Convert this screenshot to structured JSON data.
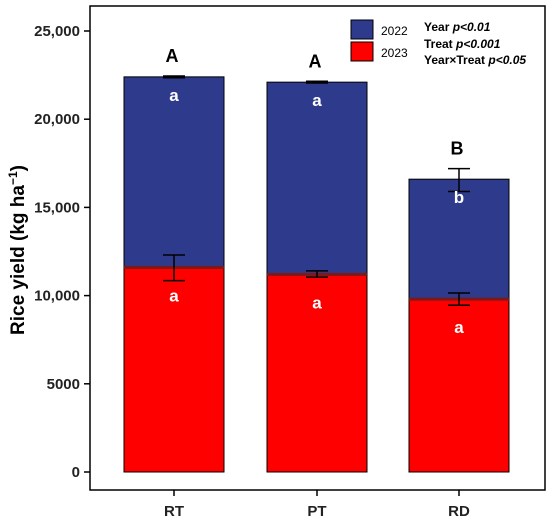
{
  "chart_data": {
    "type": "bar",
    "stacked": true,
    "categories": [
      "RT",
      "PT",
      "RD"
    ],
    "ylabel_main": "Rice yield (kg ha",
    "ylabel_sup": "−1",
    "ylabel_close": ")",
    "ylim": [
      0,
      25000
    ],
    "yticks": [
      0,
      5000,
      10000,
      15000,
      20000,
      25000
    ],
    "ytick_labels": [
      "0",
      "5000",
      "10,000",
      "15,000",
      "20,000",
      "25,000"
    ],
    "grid": false,
    "legend_position": "top-right",
    "series": [
      {
        "name": "2023",
        "color": "#ff0000",
        "values": [
          11600,
          11200,
          9800
        ],
        "error_low": [
          10850,
          11050,
          9450
        ],
        "error_high": [
          12300,
          11400,
          10150
        ],
        "letters": [
          "a",
          "a",
          "a"
        ]
      },
      {
        "name": "2022",
        "color": "#2e3a8c",
        "values": [
          10800,
          10900,
          6800
        ],
        "error_low": [
          22350,
          22050,
          15900
        ],
        "error_high": [
          22450,
          22150,
          17200
        ],
        "letters": [
          "a",
          "a",
          "b"
        ]
      }
    ],
    "total_letters": [
      "A",
      "A",
      "B"
    ],
    "stats": [
      {
        "label": "Year",
        "p": "p<0.01"
      },
      {
        "label": "Treat",
        "p": "p<0.001"
      },
      {
        "label": "Year×Treat",
        "p": "p<0.05"
      }
    ]
  }
}
